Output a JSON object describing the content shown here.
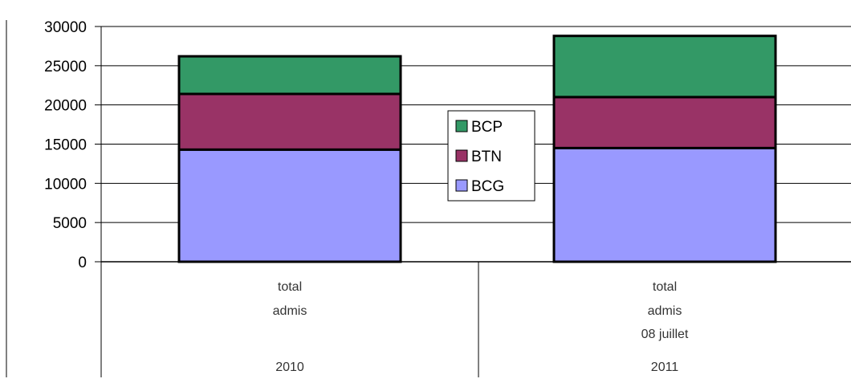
{
  "chart_data": {
    "type": "bar",
    "stacked": true,
    "categories": [
      {
        "lines": [
          "total",
          "admis"
        ],
        "group": "2010"
      },
      {
        "lines": [
          "total",
          "admis",
          "08 juillet"
        ],
        "group": "2011"
      }
    ],
    "series": [
      {
        "name": "BCG",
        "color": "#9999ff",
        "values": [
          14300,
          14500
        ]
      },
      {
        "name": "BTN",
        "color": "#993366",
        "values": [
          7100,
          6500
        ]
      },
      {
        "name": "BCP",
        "color": "#339966",
        "values": [
          4800,
          7800
        ]
      }
    ],
    "y_ticks": [
      "0",
      "5000",
      "10000",
      "15000",
      "20000",
      "25000",
      "30000"
    ],
    "ylim": [
      0,
      30000
    ],
    "grid": true,
    "legend": {
      "placement": "center",
      "entries": [
        "BCP",
        "BTN",
        "BCG"
      ]
    }
  }
}
